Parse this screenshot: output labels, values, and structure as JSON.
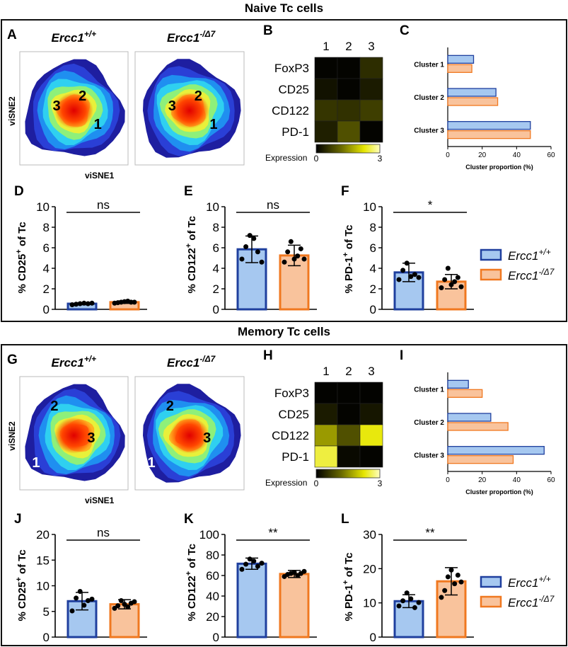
{
  "colors": {
    "wt_fill": "#a6c8f0",
    "wt_edge": "#1f3f9e",
    "mut_fill": "#f9c39c",
    "mut_edge": "#f07820"
  },
  "legend": {
    "wt": "Ercc1",
    "wt_sup": "+/+",
    "mut": "Ercc1",
    "mut_sup": "-/Δ7"
  },
  "naive": {
    "title": "Naive Tc cells",
    "tsne": {
      "letter": "A",
      "xlabel": "viSNE1",
      "ylabel": "viSNE2",
      "panels": [
        {
          "genotype": "Ercc1",
          "sup": "+/+",
          "labels": [
            "3",
            "2",
            "1"
          ]
        },
        {
          "genotype": "Ercc1",
          "sup": "-/Δ7",
          "labels": [
            "3",
            "2",
            "1"
          ]
        }
      ]
    },
    "heatmap": {
      "letter": "B",
      "clusters": [
        "1",
        "2",
        "3"
      ],
      "markers": [
        "FoxP3",
        "CD25",
        "CD122",
        "PD-1"
      ],
      "values": [
        [
          0.05,
          0.05,
          0.5
        ],
        [
          0.2,
          0.05,
          0.3
        ],
        [
          0.6,
          0.55,
          0.7
        ],
        [
          0.35,
          0.9,
          0.05
        ]
      ],
      "scale_label": "Expression",
      "scale_min": "0",
      "scale_max": "3"
    },
    "cluster_chart": {
      "letter": "C",
      "type": "bar",
      "orientation": "horizontal",
      "categories": [
        "Cluster 1",
        "Cluster 2",
        "Cluster 3"
      ],
      "series": [
        {
          "name": "Ercc1+/+",
          "values": [
            15,
            28,
            48
          ]
        },
        {
          "name": "Ercc1-/Δ7",
          "values": [
            14,
            29,
            48
          ]
        }
      ],
      "xlabel": "Cluster proportion (%)",
      "xlim": [
        0,
        60
      ],
      "ticks": [
        "0",
        "20",
        "40",
        "60"
      ]
    },
    "bars": [
      {
        "letter": "D",
        "ylabel": "% CD25",
        "sup": "+",
        "suffix": " of Tc",
        "ylim": [
          0,
          10
        ],
        "ticks": [
          "0",
          "2",
          "4",
          "6",
          "8",
          "10"
        ],
        "means": [
          0.55,
          0.7
        ],
        "sd": [
          0.1,
          0.12
        ],
        "points": [
          [
            0.45,
            0.5,
            0.55,
            0.6,
            0.55,
            0.6
          ],
          [
            0.6,
            0.65,
            0.7,
            0.75,
            0.8,
            0.7,
            0.7
          ]
        ],
        "sig": "ns"
      },
      {
        "letter": "E",
        "ylabel": "% CD122",
        "sup": "+",
        "suffix": " of Tc",
        "ylim": [
          0,
          10
        ],
        "ticks": [
          "0",
          "2",
          "4",
          "6",
          "8",
          "10"
        ],
        "means": [
          5.85,
          5.25
        ],
        "sd": [
          1.3,
          1.0
        ],
        "points": [
          [
            4.9,
            6.1,
            7.2,
            6.9,
            5.6,
            4.6
          ],
          [
            4.6,
            5.6,
            6.6,
            4.9,
            5.2,
            5.9,
            4.9
          ]
        ],
        "sig": "ns"
      },
      {
        "letter": "F",
        "ylabel": "% PD-1",
        "sup": "+",
        "suffix": " of Tc",
        "ylim": [
          0,
          10
        ],
        "ticks": [
          "0",
          "2",
          "4",
          "6",
          "8",
          "10"
        ],
        "means": [
          3.6,
          2.7
        ],
        "sd": [
          0.9,
          0.7
        ],
        "points": [
          [
            2.9,
            3.8,
            4.5,
            3.2,
            3.4,
            3.1
          ],
          [
            2.1,
            2.9,
            4.0,
            2.4,
            2.7,
            3.1,
            2.2
          ]
        ],
        "sig": "*"
      }
    ]
  },
  "memory": {
    "title": "Memory Tc cells",
    "tsne": {
      "letter": "G",
      "xlabel": "viSNE1",
      "ylabel": "viSNE2",
      "panels": [
        {
          "genotype": "Ercc1",
          "sup": "+/+",
          "labels": [
            "2",
            "3",
            "1"
          ]
        },
        {
          "genotype": "Ercc1",
          "sup": "-/Δ7",
          "labels": [
            "2",
            "3",
            "1"
          ]
        }
      ]
    },
    "heatmap": {
      "letter": "H",
      "clusters": [
        "1",
        "2",
        "3"
      ],
      "markers": [
        "FoxP3",
        "CD25",
        "CD122",
        "PD-1"
      ],
      "values": [
        [
          0.03,
          0.03,
          0.03
        ],
        [
          0.3,
          0.05,
          0.25
        ],
        [
          1.6,
          0.9,
          2.3
        ],
        [
          2.5,
          0.1,
          0.05
        ]
      ],
      "scale_label": "Expression",
      "scale_min": "0",
      "scale_max": "3"
    },
    "cluster_chart": {
      "letter": "I",
      "type": "bar",
      "orientation": "horizontal",
      "categories": [
        "Cluster 1",
        "Cluster 2",
        "Cluster 3"
      ],
      "series": [
        {
          "name": "Ercc1+/+",
          "values": [
            12,
            25,
            56
          ]
        },
        {
          "name": "Ercc1-/Δ7",
          "values": [
            20,
            35,
            38
          ]
        }
      ],
      "xlabel": "Cluster proportion (%)",
      "xlim": [
        0,
        60
      ],
      "ticks": [
        "0",
        "20",
        "40",
        "60"
      ]
    },
    "bars": [
      {
        "letter": "J",
        "ylabel": "% CD25",
        "sup": "+",
        "suffix": " of Tc",
        "ylim": [
          0,
          20
        ],
        "ticks": [
          "0",
          "5",
          "10",
          "15",
          "20"
        ],
        "means": [
          7.0,
          6.4
        ],
        "sd": [
          1.7,
          0.9
        ],
        "points": [
          [
            5.1,
            7.6,
            8.9,
            6.2,
            7.1,
            7.4
          ],
          [
            5.6,
            6.1,
            7.1,
            6.4,
            5.9,
            6.6,
            6.9
          ]
        ],
        "sig": "ns"
      },
      {
        "letter": "K",
        "ylabel": "% CD122",
        "sup": "+",
        "suffix": " of Tc",
        "ylim": [
          0,
          100
        ],
        "ticks": [
          "0",
          "20",
          "40",
          "60",
          "80",
          "100"
        ],
        "means": [
          71.5,
          61.5
        ],
        "sd": [
          5.5,
          3.5
        ],
        "points": [
          [
            66,
            71,
            76,
            74,
            69,
            72
          ],
          [
            59,
            61,
            62,
            63,
            60,
            62,
            64
          ]
        ],
        "sig": "**"
      },
      {
        "letter": "L",
        "ylabel": "% PD-1",
        "sup": "+",
        "suffix": " of Tc",
        "ylim": [
          0,
          30
        ],
        "ticks": [
          "0",
          "10",
          "20",
          "30"
        ],
        "means": [
          10.5,
          16.3
        ],
        "sd": [
          1.9,
          4.0
        ],
        "points": [
          [
            9.1,
            10.6,
            12.9,
            11.2,
            8.6,
            10.1
          ],
          [
            11.6,
            13.6,
            17.6,
            19.6,
            15.6,
            18.1,
            16.1
          ]
        ],
        "sig": "**"
      }
    ]
  }
}
